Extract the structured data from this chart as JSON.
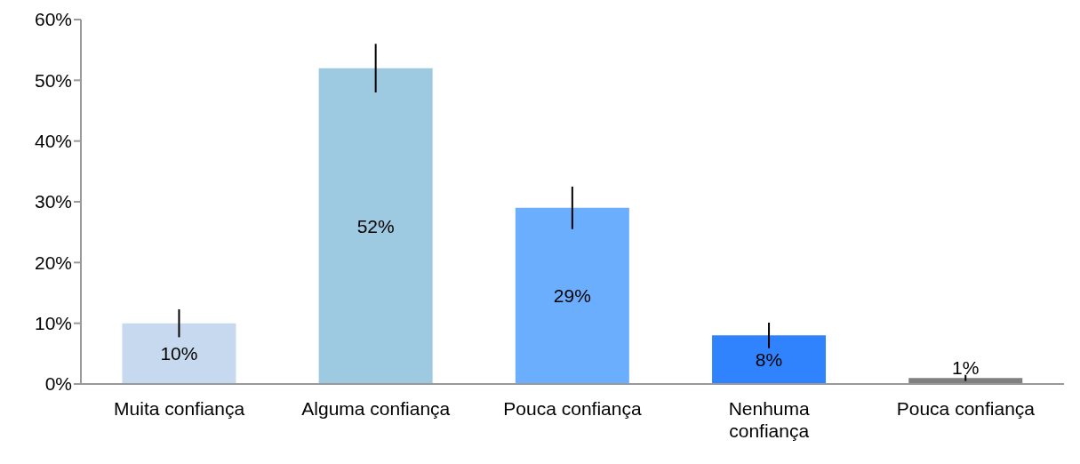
{
  "chart_data": {
    "type": "bar",
    "categories": [
      "Muita confiança",
      "Alguma confiança",
      "Pouca confiança",
      "Nenhuma confiança",
      "Pouca confiança"
    ],
    "values": [
      10,
      52,
      29,
      8,
      1
    ],
    "colors": [
      "#c6d9ef",
      "#9ecae1",
      "#6baefd",
      "#3182fd",
      "#808080"
    ],
    "errors": [
      2.3,
      4,
      3.5,
      2.1,
      0.5
    ],
    "value_labels": [
      "10%",
      "52%",
      "29%",
      "8%",
      "1%"
    ],
    "ylim": [
      0,
      60
    ],
    "yticks": [
      {
        "value": 0,
        "label": "0%"
      },
      {
        "value": 10,
        "label": "10%"
      },
      {
        "value": 20,
        "label": "20%"
      },
      {
        "value": 30,
        "label": "30%"
      },
      {
        "value": 40,
        "label": "40%"
      },
      {
        "value": 50,
        "label": "50%"
      },
      {
        "value": 60,
        "label": "60%"
      }
    ],
    "grid": false
  }
}
